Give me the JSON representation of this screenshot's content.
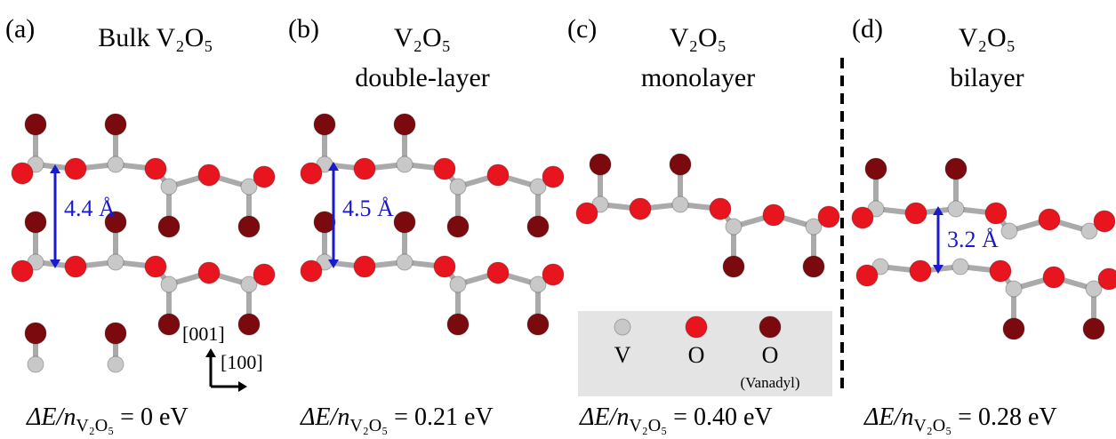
{
  "panels": [
    {
      "label": "(a)",
      "title": [
        "Bulk V₂O₅"
      ],
      "distance": "4.4 Å",
      "energy": {
        "lhs": "ΔE/n",
        "sub": "V₂O₅",
        "rhs": "= 0 eV"
      }
    },
    {
      "label": "(b)",
      "title": [
        "V₂O₅",
        "double-layer"
      ],
      "distance": "4.5 Å",
      "energy": {
        "lhs": "ΔE/n",
        "sub": "V₂O₅",
        "rhs": "= 0.21 eV"
      }
    },
    {
      "label": "(c)",
      "title": [
        "V₂O₅",
        "monolayer"
      ],
      "energy": {
        "lhs": "ΔE/n",
        "sub": "V₂O₅",
        "rhs": "= 0.40 eV"
      }
    },
    {
      "label": "(d)",
      "title": [
        "V₂O₅",
        "bilayer"
      ],
      "distance": "3.2 Å",
      "energy": {
        "lhs": "ΔE/n",
        "sub": "V₂O₅",
        "rhs": "= 0.28 eV"
      }
    }
  ],
  "axes": {
    "vertical": "[001]",
    "horizontal": "[100]"
  },
  "legend": {
    "v": "V",
    "o": "O",
    "vanadyl": "O",
    "vanadyl_note": "(Vanadyl)"
  }
}
